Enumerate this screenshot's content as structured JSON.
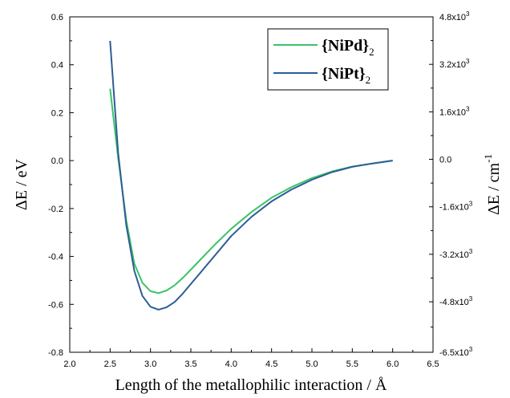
{
  "chart_data": {
    "type": "line",
    "xlabel": "Length of the metallophilic interaction / Å",
    "ylabel_left": "ΔE / eV",
    "ylabel_right_main": "ΔE / cm",
    "ylabel_right_sup": "-1",
    "xlim": [
      2.0,
      6.5
    ],
    "ylim_left": [
      -0.8,
      0.6
    ],
    "ylim_right": [
      -6500,
      4800
    ],
    "x_ticks": [
      "2.0",
      "2.5",
      "3.0",
      "3.5",
      "4.0",
      "4.5",
      "5.0",
      "5.5",
      "6.0",
      "6.5"
    ],
    "y_ticks_left": [
      "0.6",
      "0.4",
      "0.2",
      "0.0",
      "-0.2",
      "-0.4",
      "-0.6",
      "-0.8"
    ],
    "y_ticks_right": [
      {
        "mant": "4.8x10",
        "exp": "3",
        "value": 4800
      },
      {
        "mant": "3.2x10",
        "exp": "3",
        "value": 3200
      },
      {
        "mant": "1.6x10",
        "exp": "3",
        "value": 1600
      },
      {
        "mant": "0.0",
        "exp": "",
        "value": 0
      },
      {
        "mant": "-1.6x10",
        "exp": "3",
        "value": -1600
      },
      {
        "mant": "-3.2x10",
        "exp": "3",
        "value": -3200
      },
      {
        "mant": "-4.8x10",
        "exp": "3",
        "value": -4800
      },
      {
        "mant": "-6.5x10",
        "exp": "3",
        "value": -6500
      }
    ],
    "grid": false,
    "legend_position": "top-right",
    "series": [
      {
        "name": "{NiPd}",
        "name_sub": "2",
        "color": "#3cc36a",
        "x": [
          2.5,
          2.6,
          2.7,
          2.8,
          2.9,
          3.0,
          3.1,
          3.2,
          3.3,
          3.4,
          3.5,
          3.6,
          3.8,
          4.0,
          4.25,
          4.5,
          4.75,
          5.0,
          5.25,
          5.5,
          5.75,
          6.0
        ],
        "y": [
          0.3,
          0.01,
          -0.25,
          -0.43,
          -0.51,
          -0.545,
          -0.553,
          -0.542,
          -0.52,
          -0.49,
          -0.455,
          -0.42,
          -0.35,
          -0.285,
          -0.215,
          -0.155,
          -0.11,
          -0.073,
          -0.045,
          -0.025,
          -0.012,
          0.0
        ]
      },
      {
        "name": "{NiPt}",
        "name_sub": "2",
        "color": "#2c5d96",
        "x": [
          2.5,
          2.6,
          2.7,
          2.8,
          2.9,
          3.0,
          3.1,
          3.2,
          3.3,
          3.4,
          3.5,
          3.6,
          3.8,
          4.0,
          4.25,
          4.5,
          4.75,
          5.0,
          5.25,
          5.5,
          5.75,
          6.0
        ],
        "y": [
          0.5,
          0.03,
          -0.27,
          -0.46,
          -0.565,
          -0.61,
          -0.622,
          -0.612,
          -0.59,
          -0.555,
          -0.515,
          -0.475,
          -0.395,
          -0.315,
          -0.235,
          -0.17,
          -0.12,
          -0.08,
          -0.048,
          -0.026,
          -0.012,
          0.0
        ]
      }
    ]
  }
}
